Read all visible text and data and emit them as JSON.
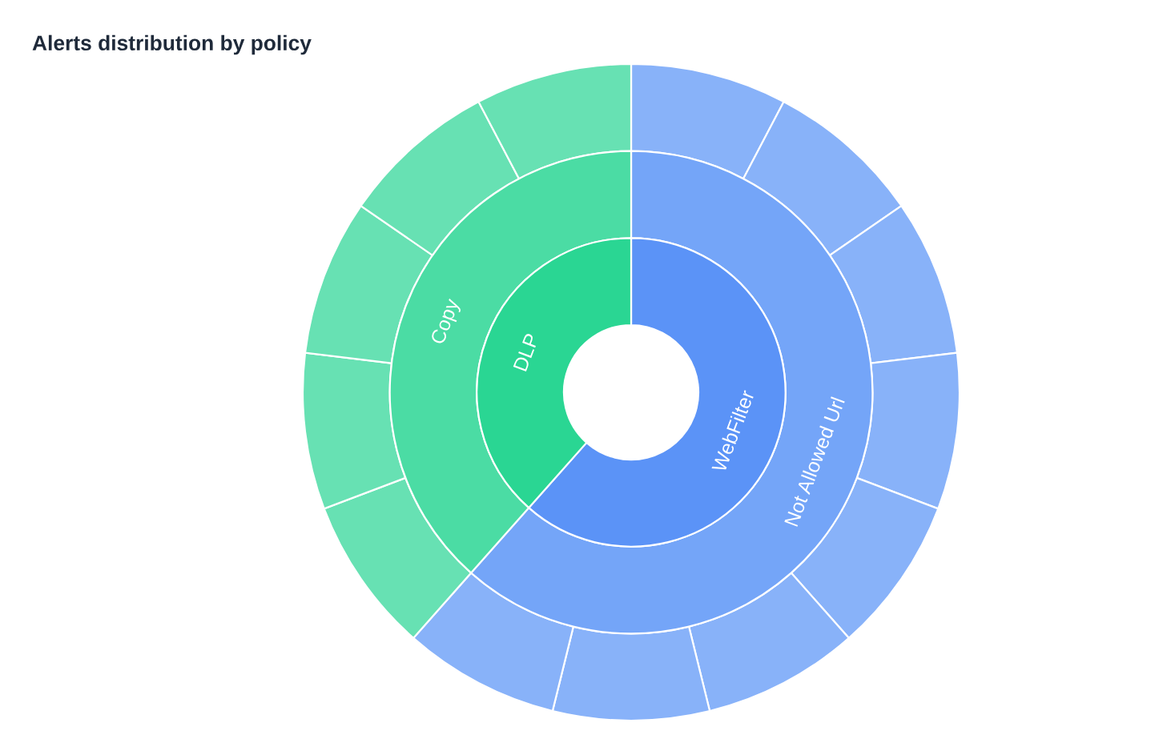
{
  "chart_data": {
    "type": "donut",
    "title": "Alerts distribution by policy",
    "series": [
      {
        "values": [
          7.69,
          7.69,
          7.69,
          7.69,
          7.69,
          7.69,
          7.69,
          7.69,
          7.69,
          7.69,
          7.69,
          7.69,
          7.69
        ],
        "colors": [
          "#88b2f9",
          "#88b2f9",
          "#88b2f9",
          "#88b2f9",
          "#88b2f9",
          "#88b2f9",
          "#88b2f9",
          "#88b2f9",
          "#67e1b3",
          "#67e1b3",
          "#67e1b3",
          "#67e1b3",
          "#67e1b3"
        ]
      },
      {
        "values": [
          61.54,
          38.46
        ],
        "colors": [
          "#74a5f8",
          "#4bdca4"
        ],
        "value_labels": [
          "Not Allowed Url",
          "Copy"
        ]
      },
      {
        "values": [
          61.54,
          38.46
        ],
        "colors": [
          "#5b93f7",
          "#2ad693"
        ],
        "value_labels": [
          "WebFilter",
          "DLP"
        ]
      }
    ]
  }
}
